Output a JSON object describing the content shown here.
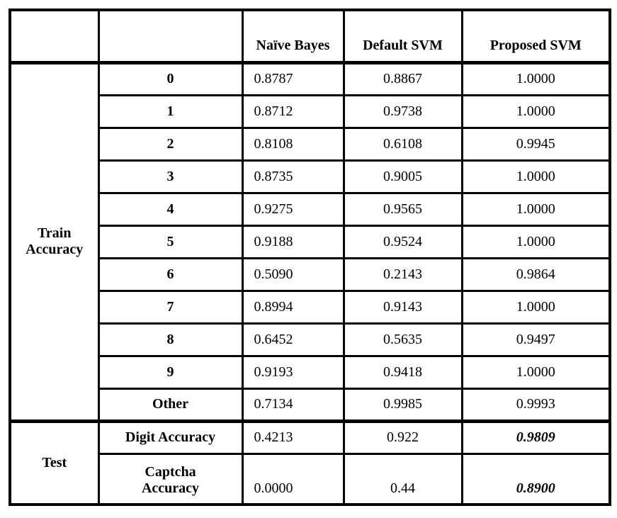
{
  "table": {
    "columns": {
      "corner1": "",
      "corner2": "",
      "naive_bayes": "Naïve Bayes",
      "default_svm": "Default SVM",
      "proposed_svm": "Proposed SVM"
    },
    "sections": [
      {
        "group_label": "Train Accuracy",
        "rows": [
          {
            "label": "0",
            "values": [
              "0.8787",
              "0.8867",
              "1.0000"
            ]
          },
          {
            "label": "1",
            "values": [
              "0.8712",
              "0.9738",
              "1.0000"
            ]
          },
          {
            "label": "2",
            "values": [
              "0.8108",
              "0.6108",
              "0.9945"
            ]
          },
          {
            "label": "3",
            "values": [
              "0.8735",
              "0.9005",
              "1.0000"
            ]
          },
          {
            "label": "4",
            "values": [
              "0.9275",
              "0.9565",
              "1.0000"
            ]
          },
          {
            "label": "5",
            "values": [
              "0.9188",
              "0.9524",
              "1.0000"
            ]
          },
          {
            "label": "6",
            "values": [
              "0.5090",
              "0.2143",
              "0.9864"
            ]
          },
          {
            "label": "7",
            "values": [
              "0.8994",
              "0.9143",
              "1.0000"
            ]
          },
          {
            "label": "8",
            "values": [
              "0.6452",
              "0.5635",
              "0.9497"
            ]
          },
          {
            "label": "9",
            "values": [
              "0.9193",
              "0.9418",
              "1.0000"
            ]
          },
          {
            "label": "Other",
            "values": [
              "0.7134",
              "0.9985",
              "0.9993"
            ]
          }
        ]
      },
      {
        "group_label": "Test",
        "rows": [
          {
            "label": "Digit Accuracy",
            "values": [
              "0.4213",
              "0.922",
              "0.9809"
            ]
          },
          {
            "label": "Captcha\nAccuracy",
            "values": [
              "0.0000",
              "0.44",
              "0.8900"
            ]
          }
        ]
      }
    ],
    "style": {
      "border_color": "#000000",
      "background_color": "#ffffff",
      "text_color": "#000000"
    }
  }
}
